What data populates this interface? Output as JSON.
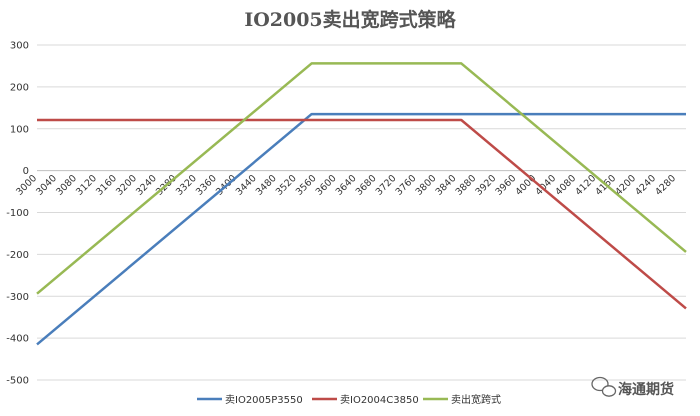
{
  "chart_data": {
    "type": "line",
    "title": "IO2005卖出宽跨式策略",
    "xlabel": "",
    "ylabel": "",
    "ylim": [
      -500,
      300
    ],
    "yticks": [
      300,
      200,
      100,
      0,
      -100,
      -200,
      -300,
      -400,
      -500
    ],
    "xlim": [
      3000,
      4300
    ],
    "x": [
      "3000",
      "3040",
      "3080",
      "3120",
      "3160",
      "3200",
      "3240",
      "3280",
      "3320",
      "3360",
      "3400",
      "3440",
      "3480",
      "3520",
      "3560",
      "3600",
      "3640",
      "3680",
      "3720",
      "3760",
      "3800",
      "3840",
      "3880",
      "3920",
      "3960",
      "4000",
      "4040",
      "4080",
      "4120",
      "4160",
      "4200",
      "4240",
      "4280"
    ],
    "grid": "horizontal",
    "legend": "bottom",
    "series": [
      {
        "name": "卖IO2005P3550",
        "color": "#4a7ebb",
        "points": [
          [
            3000,
            -415
          ],
          [
            3550,
            135
          ],
          [
            4300,
            135
          ]
        ]
      },
      {
        "name": "卖IO2004C3850",
        "color": "#be4b48",
        "points": [
          [
            3000,
            121
          ],
          [
            3850,
            121
          ],
          [
            4300,
            -329
          ]
        ]
      },
      {
        "name": "卖出宽跨式",
        "color": "#98b954",
        "points": [
          [
            3000,
            -294
          ],
          [
            3550,
            256
          ],
          [
            3850,
            256
          ],
          [
            4300,
            -194
          ]
        ]
      }
    ]
  },
  "watermark": {
    "text": "海通期货"
  }
}
